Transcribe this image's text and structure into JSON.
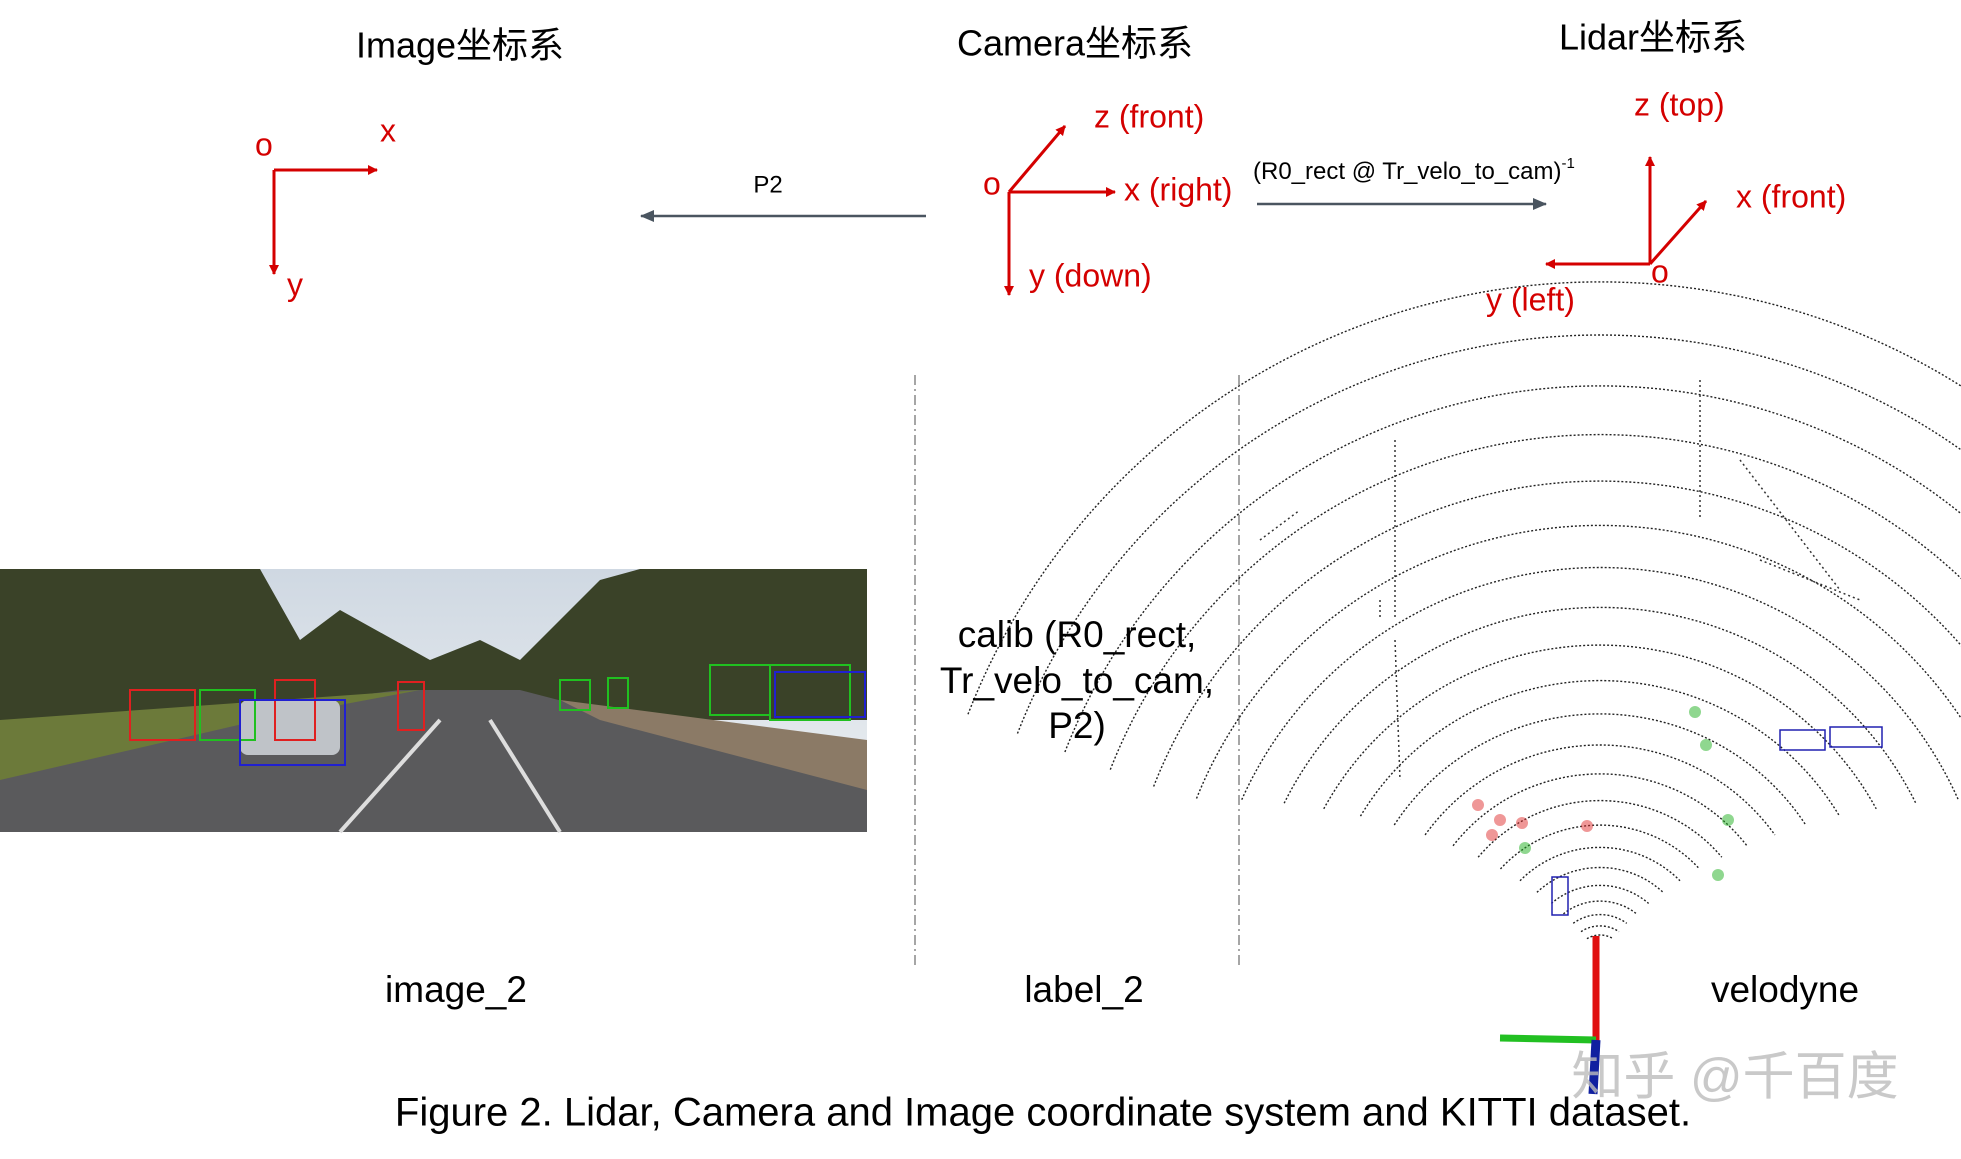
{
  "image_frame": {
    "title": "Image坐标系",
    "origin": "o",
    "x_axis": "x",
    "y_axis": "y"
  },
  "camera_frame": {
    "title": "Camera坐标系",
    "origin": "o",
    "z_axis": "z (front)",
    "x_axis": "x (right)",
    "y_axis": "y (down)"
  },
  "lidar_frame": {
    "title": "Lidar坐标系",
    "origin": "o",
    "z_axis": "z (top)",
    "x_axis": "x (front)",
    "y_axis": "y (left)"
  },
  "arrows": {
    "camera_to_image": "P2",
    "lidar_to_camera": {
      "text": "(R0_rect @ Tr_velo_to_cam)",
      "superscript": "-1"
    }
  },
  "calib": [
    "calib (R0_rect,",
    "Tr_velo_to_cam,",
    "P2)"
  ],
  "panels": {
    "image": "image_2",
    "label": "label_2",
    "lidar": "velodyne"
  },
  "caption": "Figure 2. Lidar, Camera and Image coordinate system and KITTI dataset.",
  "watermark": "知乎 @千百度"
}
